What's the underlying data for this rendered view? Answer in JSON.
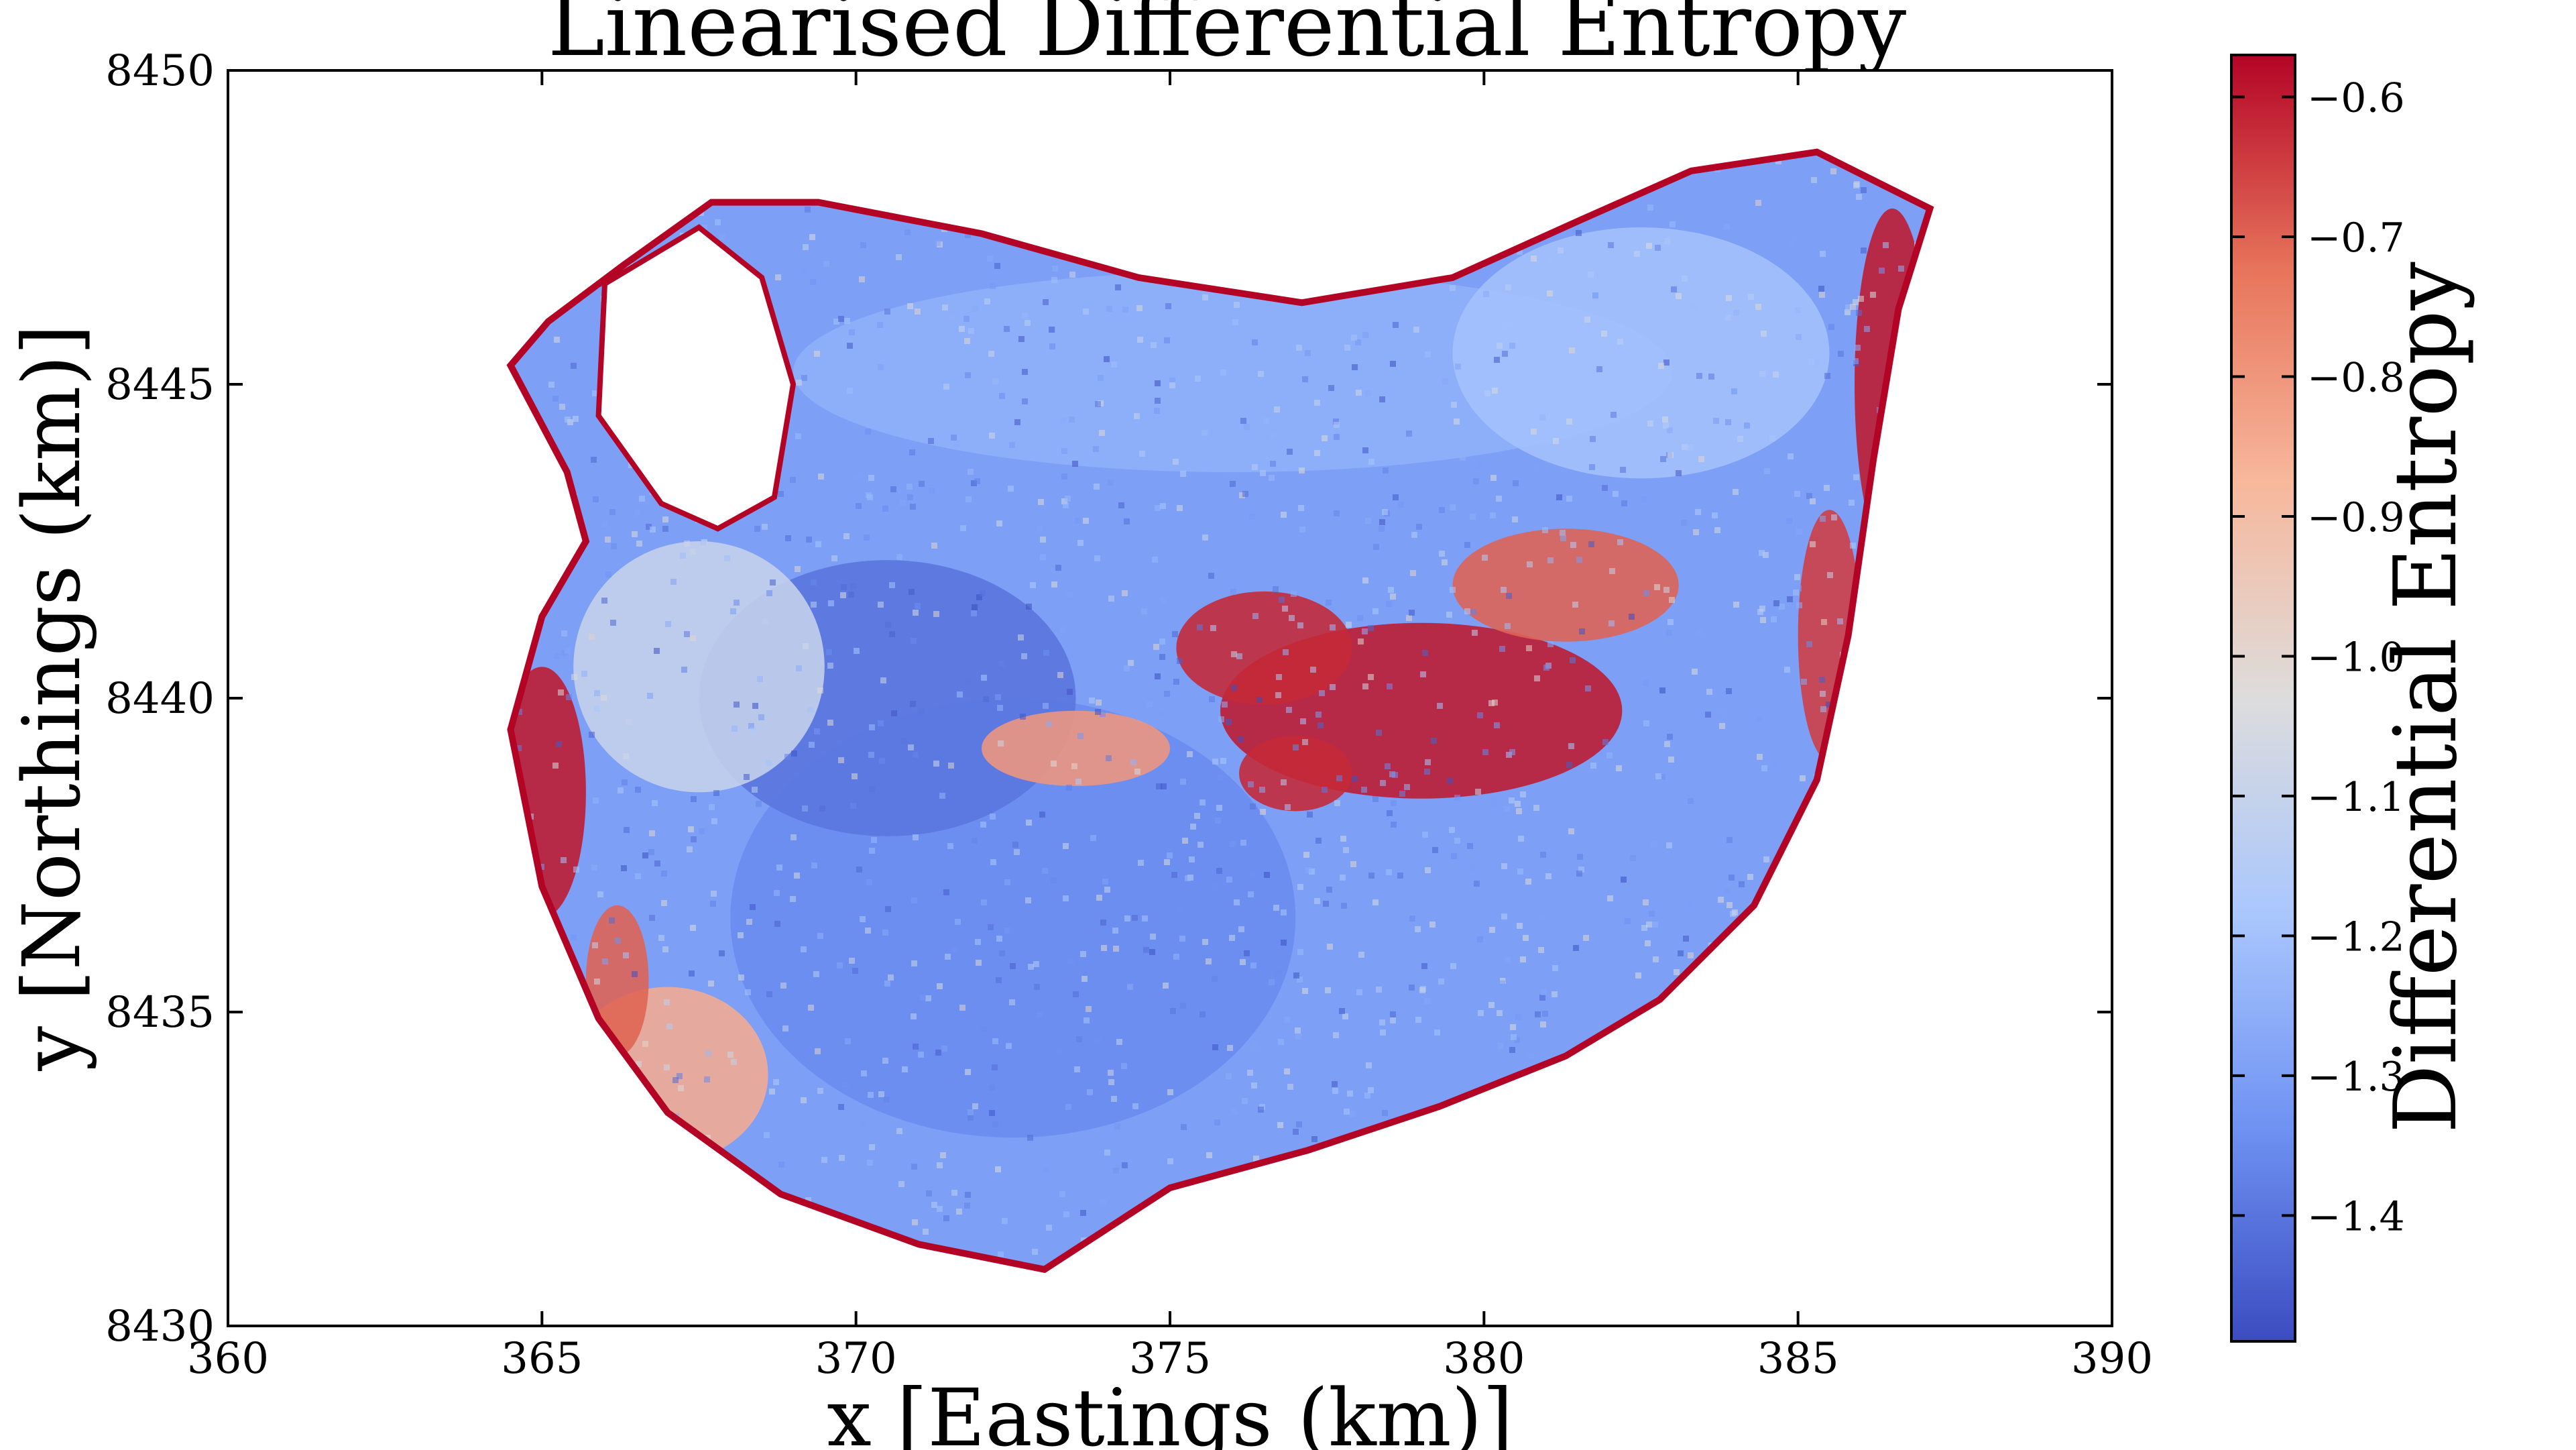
{
  "chart_data": {
    "type": "heatmap",
    "title": "Linearised Differential Entropy",
    "xlabel": "x [Eastings (km)]",
    "ylabel": "y [Northings (km)]",
    "xlim": [
      360,
      390
    ],
    "ylim": [
      8430,
      8450
    ],
    "xticks": [
      "360",
      "365",
      "370",
      "375",
      "380",
      "385",
      "390"
    ],
    "yticks": [
      "8430",
      "8435",
      "8440",
      "8445",
      "8450"
    ],
    "grid": false,
    "colormap": "coolwarm",
    "colorbar": {
      "label": "Differential Entropy",
      "range": [
        -1.49,
        -0.57
      ],
      "ticks": [
        "−1.4",
        "−1.3",
        "−1.2",
        "−1.1",
        "−1.0",
        "−0.9",
        "−0.8",
        "−0.7",
        "−0.6"
      ],
      "colors": [
        "#3b4cc0",
        "#6f92f3",
        "#aac7fd",
        "#dddcdc",
        "#f7b89c",
        "#e7745b",
        "#b40426"
      ]
    },
    "region_boundary": [
      [
        364.5,
        8445.3
      ],
      [
        365.1,
        8446.0
      ],
      [
        366.3,
        8446.9
      ],
      [
        367.7,
        8447.9
      ],
      [
        369.4,
        8447.9
      ],
      [
        372.0,
        8447.4
      ],
      [
        374.5,
        8446.7
      ],
      [
        377.1,
        8446.3
      ],
      [
        379.5,
        8446.7
      ],
      [
        381.5,
        8447.6
      ],
      [
        383.3,
        8448.4
      ],
      [
        385.3,
        8448.7
      ],
      [
        387.1,
        8447.8
      ],
      [
        386.6,
        8446.2
      ],
      [
        386.2,
        8443.8
      ],
      [
        385.8,
        8441.0
      ],
      [
        385.3,
        8438.7
      ],
      [
        384.3,
        8436.7
      ],
      [
        382.8,
        8435.2
      ],
      [
        381.3,
        8434.3
      ],
      [
        379.3,
        8433.5
      ],
      [
        377.2,
        8432.8
      ],
      [
        375.0,
        8432.2
      ],
      [
        373.0,
        8430.9
      ],
      [
        371.0,
        8431.3
      ],
      [
        368.8,
        8432.1
      ],
      [
        367.0,
        8433.4
      ],
      [
        365.9,
        8434.9
      ],
      [
        365.0,
        8437.0
      ],
      [
        364.5,
        8439.5
      ],
      [
        365.0,
        8441.3
      ],
      [
        365.7,
        8442.5
      ],
      [
        365.4,
        8443.6
      ]
    ],
    "gap_region": [
      [
        366.0,
        8446.6
      ],
      [
        367.5,
        8447.5
      ],
      [
        368.5,
        8446.7
      ],
      [
        369.0,
        8445.0
      ],
      [
        368.7,
        8443.2
      ],
      [
        367.8,
        8442.7
      ],
      [
        366.9,
        8443.1
      ],
      [
        365.9,
        8444.5
      ]
    ],
    "field_zones": [
      {
        "value": -1.35,
        "x": 372.5,
        "y": 8436.5,
        "rx": 4.5,
        "ry": 3.5
      },
      {
        "value": -1.25,
        "x": 376.0,
        "y": 8445.2,
        "rx": 7.0,
        "ry": 1.6
      },
      {
        "value": -1.4,
        "x": 370.5,
        "y": 8440.0,
        "rx": 3.0,
        "ry": 2.2
      },
      {
        "value": -1.2,
        "x": 382.5,
        "y": 8445.5,
        "rx": 3.0,
        "ry": 2.0
      },
      {
        "value": -1.3,
        "x": 383.5,
        "y": 8439.5,
        "rx": 2.0,
        "ry": 3.0
      },
      {
        "value": -1.1,
        "x": 367.5,
        "y": 8440.5,
        "rx": 2.0,
        "ry": 2.0
      },
      {
        "value": -0.85,
        "x": 367.0,
        "y": 8434.0,
        "rx": 1.6,
        "ry": 1.4
      },
      {
        "value": -0.8,
        "x": 373.5,
        "y": 8439.2,
        "rx": 1.5,
        "ry": 0.6
      },
      {
        "value": -0.6,
        "x": 379.0,
        "y": 8439.8,
        "rx": 3.2,
        "ry": 1.4
      },
      {
        "value": -0.7,
        "x": 381.3,
        "y": 8441.8,
        "rx": 1.8,
        "ry": 0.9
      },
      {
        "value": -0.62,
        "x": 376.5,
        "y": 8440.8,
        "rx": 1.4,
        "ry": 0.9
      },
      {
        "value": -0.6,
        "x": 365.0,
        "y": 8438.5,
        "rx": 0.7,
        "ry": 2.0
      },
      {
        "value": -0.6,
        "x": 386.5,
        "y": 8445.0,
        "rx": 0.6,
        "ry": 2.8
      },
      {
        "value": -0.65,
        "x": 385.5,
        "y": 8441.0,
        "rx": 0.5,
        "ry": 2.0
      },
      {
        "value": -0.62,
        "x": 377.0,
        "y": 8438.8,
        "rx": 0.9,
        "ry": 0.6
      },
      {
        "value": -0.7,
        "x": 366.2,
        "y": 8435.5,
        "rx": 0.5,
        "ry": 1.2
      }
    ]
  }
}
